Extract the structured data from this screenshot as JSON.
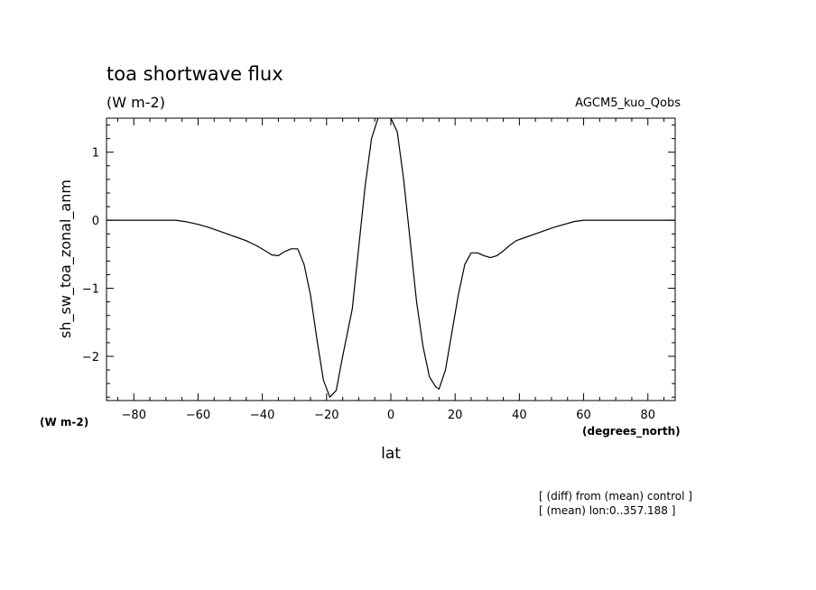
{
  "chart_data": {
    "type": "line",
    "title": "toa shortwave flux",
    "units": "(W m-2)",
    "model": "AGCM5_kuo_Qobs",
    "ylabel": "sh_sw_toa_zonal_anm",
    "xlabel": "lat",
    "y_units": "(W m-2)",
    "x_units": "(degrees_north)",
    "notes": [
      "[ (diff) from (mean) control ]",
      "[ (mean) lon:0..357.188 ]"
    ],
    "xlim": [
      -88.5,
      88.5
    ],
    "ylim": [
      -2.65,
      1.5
    ],
    "xticks": [
      -80,
      -60,
      -40,
      -20,
      0,
      20,
      40,
      60,
      80
    ],
    "yticks": [
      -2,
      -1,
      0,
      1
    ],
    "grid": false,
    "series": [
      {
        "x": [
          -88.5,
          -80,
          -75,
          -70,
          -67,
          -64,
          -60,
          -57,
          -54,
          -51,
          -48,
          -45,
          -42,
          -39,
          -37,
          -35,
          -33,
          -31,
          -29,
          -27,
          -25,
          -23,
          -21,
          -19,
          -17,
          -15,
          -12,
          -10,
          -8,
          -6,
          -4,
          -2,
          0,
          2,
          4,
          6,
          8,
          10,
          12,
          14,
          15,
          17,
          19,
          21,
          23,
          25,
          27,
          29,
          31,
          33,
          35,
          37,
          39,
          42,
          45,
          48,
          51,
          54,
          57,
          60,
          64,
          67,
          70,
          75,
          80,
          88.5
        ],
        "y": [
          0,
          0,
          0,
          0,
          0,
          -0.02,
          -0.06,
          -0.1,
          -0.15,
          -0.2,
          -0.25,
          -0.3,
          -0.37,
          -0.45,
          -0.51,
          -0.52,
          -0.46,
          -0.42,
          -0.42,
          -0.65,
          -1.1,
          -1.75,
          -2.35,
          -2.6,
          -2.5,
          -2.0,
          -1.3,
          -0.4,
          0.5,
          1.2,
          1.5,
          1.6,
          1.5,
          1.3,
          0.6,
          -0.3,
          -1.2,
          -1.85,
          -2.3,
          -2.45,
          -2.48,
          -2.2,
          -1.65,
          -1.1,
          -0.65,
          -0.48,
          -0.48,
          -0.52,
          -0.55,
          -0.52,
          -0.45,
          -0.37,
          -0.3,
          -0.25,
          -0.2,
          -0.15,
          -0.1,
          -0.06,
          -0.02,
          0,
          0,
          0,
          0,
          0,
          0,
          0
        ]
      }
    ]
  }
}
